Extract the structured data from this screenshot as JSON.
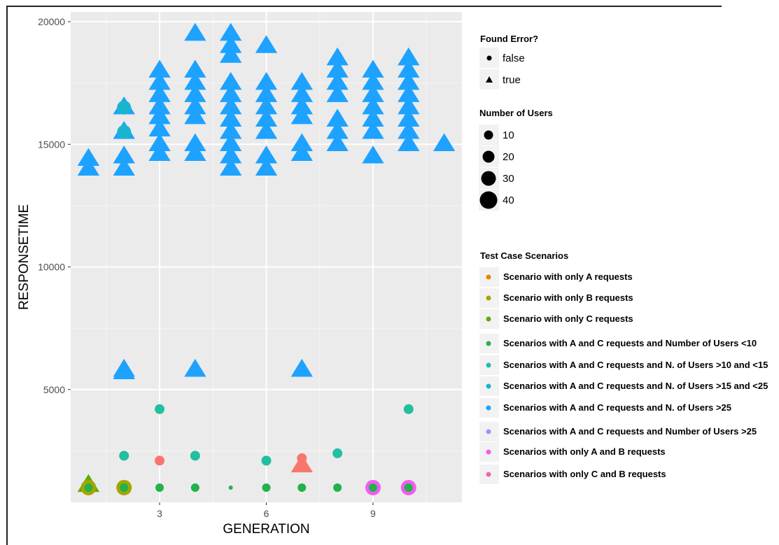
{
  "chart_data": {
    "type": "scatter",
    "xlabel": "GENERATION",
    "ylabel": "RESPONSETIME",
    "xlim": [
      0.5,
      11.5
    ],
    "ylim": [
      400,
      20400
    ],
    "x_ticks": [
      3,
      6,
      9
    ],
    "y_ticks": [
      5000,
      10000,
      15000,
      20000
    ],
    "grid": true,
    "legend_placement": "right",
    "legends": {
      "shape": {
        "title": "Found Error?",
        "entries": [
          {
            "label": "false",
            "shape": "circle"
          },
          {
            "label": "true",
            "shape": "triangle"
          }
        ]
      },
      "size": {
        "title": "Number of Users",
        "entries": [
          {
            "label": "10",
            "value": 10
          },
          {
            "label": "20",
            "value": 20
          },
          {
            "label": "30",
            "value": 30
          },
          {
            "label": "40",
            "value": 40
          }
        ]
      },
      "color": {
        "title": "Test Case Scenarios",
        "entries": [
          {
            "label": "Scenario with only A requests",
            "color": "#E38900"
          },
          {
            "label": "Scenario with only B requests",
            "color": "#A3A500"
          },
          {
            "label": "Scenario with only C requests",
            "color": "#5DAD00"
          },
          {
            "label": "Scenarios with A and C requests and Number of Users <10",
            "color": "#21B24A"
          },
          {
            "label": "Scenarios with A and C requests and N. of Users  >10 and <15",
            "color": "#22BFA0"
          },
          {
            "label": "Scenarios with A and C requests and N. of Users  >15 and <25",
            "color": "#19B5D0"
          },
          {
            "label": "Scenarios with A and C requests and N. of Users  >25",
            "color": "#1EA2FF"
          },
          {
            "label": "Scenarios with A and C requests and Number of Users  >25",
            "color": "#B088FF"
          },
          {
            "label": "Scenarios with only A and B requests",
            "color": "#F35CF0"
          },
          {
            "label": "Scenarios with only C and B requests",
            "color": "#F564B4"
          }
        ]
      }
    },
    "series": [
      {
        "color": "#1EA2FF",
        "shape": "triangle",
        "points": [
          [
            1,
            14000
          ],
          [
            1,
            14400
          ],
          [
            2,
            14000
          ],
          [
            2,
            14500
          ],
          [
            2,
            15500
          ],
          [
            2,
            16500
          ],
          [
            3,
            14600
          ],
          [
            3,
            15000
          ],
          [
            3,
            15600
          ],
          [
            3,
            16100
          ],
          [
            3,
            16500
          ],
          [
            3,
            17000
          ],
          [
            3,
            17500
          ],
          [
            3,
            18000
          ],
          [
            4,
            14600
          ],
          [
            4,
            15000
          ],
          [
            4,
            16100
          ],
          [
            4,
            16500
          ],
          [
            4,
            17000
          ],
          [
            4,
            17500
          ],
          [
            4,
            18000
          ],
          [
            4,
            19500
          ],
          [
            5,
            14000
          ],
          [
            5,
            14500
          ],
          [
            5,
            15000
          ],
          [
            5,
            15500
          ],
          [
            5,
            16000
          ],
          [
            5,
            16500
          ],
          [
            5,
            17000
          ],
          [
            5,
            17500
          ],
          [
            5,
            18600
          ],
          [
            5,
            19000
          ],
          [
            5,
            19500
          ],
          [
            6,
            14000
          ],
          [
            6,
            14500
          ],
          [
            6,
            15500
          ],
          [
            6,
            16000
          ],
          [
            6,
            16500
          ],
          [
            6,
            17000
          ],
          [
            6,
            17500
          ],
          [
            6,
            19000
          ],
          [
            7,
            14600
          ],
          [
            7,
            15000
          ],
          [
            7,
            16100
          ],
          [
            7,
            16500
          ],
          [
            7,
            17000
          ],
          [
            7,
            17500
          ],
          [
            8,
            15000
          ],
          [
            8,
            15500
          ],
          [
            8,
            16000
          ],
          [
            8,
            17000
          ],
          [
            8,
            17500
          ],
          [
            8,
            18000
          ],
          [
            8,
            18500
          ],
          [
            9,
            14500
          ],
          [
            9,
            15500
          ],
          [
            9,
            16000
          ],
          [
            9,
            16500
          ],
          [
            9,
            17000
          ],
          [
            9,
            17500
          ],
          [
            9,
            18000
          ],
          [
            10,
            15000
          ],
          [
            10,
            15500
          ],
          [
            10,
            16000
          ],
          [
            10,
            16500
          ],
          [
            10,
            17000
          ],
          [
            10,
            17500
          ],
          [
            10,
            18000
          ],
          [
            10,
            18500
          ],
          [
            11,
            15000
          ],
          [
            2,
            5700
          ],
          [
            2,
            5800
          ],
          [
            4,
            5800
          ],
          [
            7,
            5800
          ]
        ]
      },
      {
        "color": "#19B5D0",
        "shape": "circle",
        "points": [
          [
            2,
            15500
          ],
          [
            2,
            16500
          ]
        ]
      },
      {
        "color": "#22BFA0",
        "shape": "circle",
        "points": [
          [
            2,
            2300
          ],
          [
            3,
            4200
          ],
          [
            4,
            2300
          ],
          [
            6,
            2100
          ],
          [
            8,
            2400
          ],
          [
            10,
            4200
          ]
        ]
      },
      {
        "color": "#F8766D",
        "shape": "circle",
        "points": [
          [
            3,
            2100
          ],
          [
            7,
            2200
          ]
        ]
      },
      {
        "color": "#F8766D",
        "shape": "triangle",
        "points": [
          [
            7,
            1900
          ]
        ]
      },
      {
        "color": "#5DAD00",
        "shape": "triangle",
        "points": [
          [
            1,
            1100
          ]
        ]
      },
      {
        "color": "#A3A500",
        "shape": "circle",
        "points": [
          [
            1,
            1000
          ],
          [
            2,
            1000
          ]
        ]
      },
      {
        "color": "#F35CF0",
        "shape": "circle",
        "points": [
          [
            9,
            1000
          ],
          [
            10,
            1000
          ]
        ]
      },
      {
        "color": "#21B24A",
        "shape": "circle",
        "points": [
          [
            1,
            1000
          ],
          [
            2,
            1000
          ],
          [
            3,
            1000
          ],
          [
            4,
            1000
          ],
          [
            5,
            1000
          ],
          [
            6,
            1000
          ],
          [
            7,
            1000
          ],
          [
            8,
            1000
          ],
          [
            9,
            1000
          ],
          [
            10,
            1000
          ]
        ]
      }
    ]
  }
}
